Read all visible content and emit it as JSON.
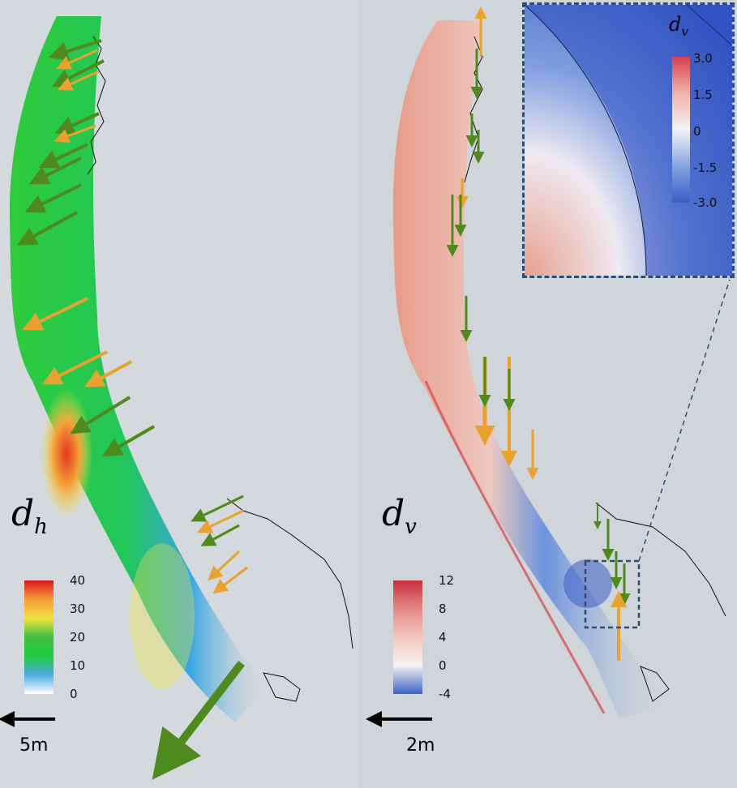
{
  "left_panel": {
    "symbol": "d",
    "symbol_sub": "h",
    "colorbar": {
      "ticks": [
        "40",
        "30",
        "20",
        "10",
        "0"
      ],
      "colors": [
        "#d7191c",
        "#f79a3a",
        "#f0e442",
        "#3fbf3f",
        "#1fcb3f",
        "#4fa9e6",
        "#ffffff"
      ]
    },
    "scale_label": "5m"
  },
  "right_panel": {
    "symbol": "d",
    "symbol_sub": "v",
    "colorbar": {
      "ticks": [
        "12",
        "8",
        "4",
        "0",
        "-4"
      ],
      "colors": [
        "#c7303a",
        "#e58a86",
        "#f3c8be",
        "#f5f2f2",
        "#3a63c8"
      ]
    },
    "scale_label": "2m"
  },
  "inset": {
    "symbol": "d",
    "symbol_sub": "v",
    "colorbar": {
      "ticks": [
        "3.0",
        "1.5",
        "0",
        "-1.5",
        "-3.0"
      ],
      "colors": [
        "#d6404c",
        "#f2b3a8",
        "#f3f3f5",
        "#88a3e0",
        "#3a5cc6"
      ]
    }
  },
  "arrow_colors": {
    "observed": "#e8a22f",
    "model": "#4e8a1e"
  }
}
